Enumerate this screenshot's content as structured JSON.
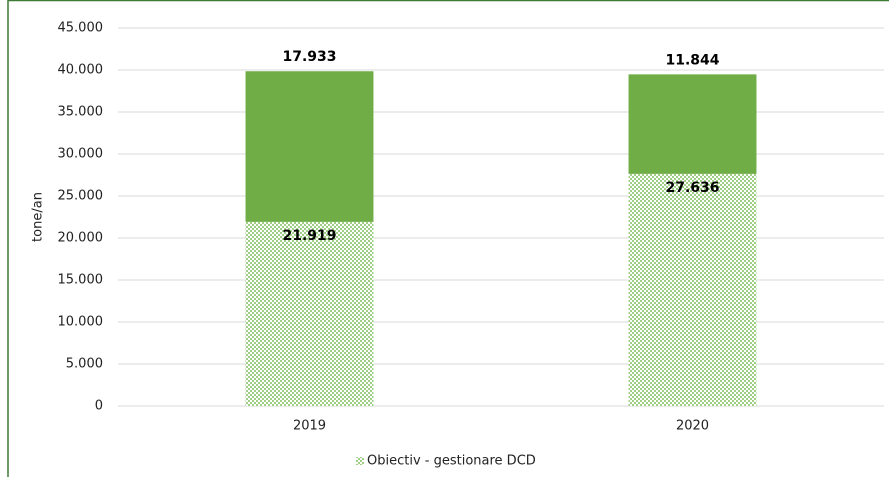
{
  "chart_data": {
    "type": "stacked_bar",
    "y_label": "tone/an",
    "categories": [
      "2019",
      "2020"
    ],
    "series": [
      {
        "name": "Obiectiv - gestionare DCD",
        "color": "#70ad47",
        "pattern": "dots",
        "values": [
          21919,
          27636
        ],
        "value_labels": [
          "21.919",
          "27.636"
        ]
      },
      {
        "color": "#70ad47",
        "values": [
          17933,
          11844
        ],
        "value_labels": [
          "17.933",
          "11.844"
        ]
      }
    ],
    "ylim": [
      0,
      45000
    ],
    "yticks": [
      0,
      {
        "value": 5000,
        "label": "5.000"
      },
      {
        "value": 10000,
        "label": "10.000"
      },
      {
        "value": 15000,
        "label": "15.000"
      },
      {
        "value": 20000,
        "label": "20.000"
      },
      {
        "value": 25000,
        "label": "25.000"
      },
      {
        "value": 30000,
        "label": "30.000"
      },
      {
        "value": 35000,
        "label": "35.000"
      },
      {
        "value": 40000,
        "label": "40.000"
      },
      {
        "value": 45000,
        "label": "45.000"
      }
    ],
    "grid": true,
    "legend": "bottom"
  }
}
